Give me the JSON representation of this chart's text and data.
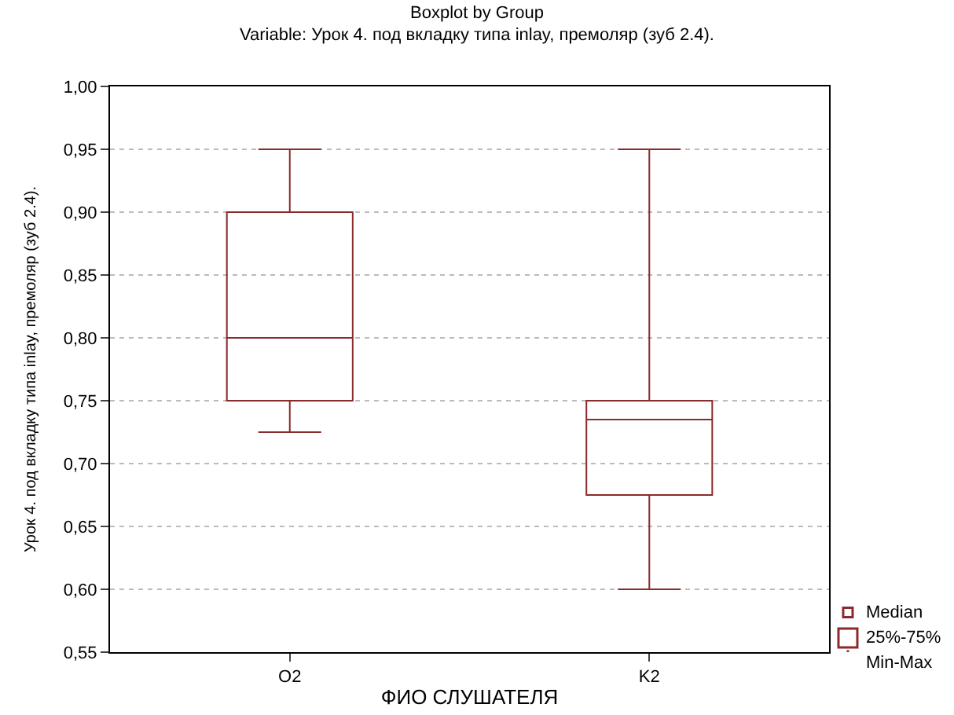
{
  "chart_data": {
    "type": "box",
    "title": "Boxplot by Group",
    "subtitle": "Variable: Урок 4. под вкладку типа inlay, премоляр (зуб 2.4).",
    "xlabel": "ФИО СЛУШАТЕЛЯ",
    "ylabel": "Урок 4. под вкладку типа inlay, премоляр (зуб 2.4).",
    "categories": [
      "O2",
      "K2"
    ],
    "series": [
      {
        "color": "#8b2a2a",
        "boxes": [
          {
            "low": 0.725,
            "q1": 0.75,
            "median": 0.8,
            "q3": 0.9,
            "high": 0.95
          },
          {
            "low": 0.6,
            "q1": 0.675,
            "median": 0.735,
            "q3": 0.75,
            "high": 0.95
          }
        ]
      }
    ],
    "ylim": [
      0.55,
      1.0
    ],
    "yticks": [
      {
        "value": 0.55,
        "label": "0,55"
      },
      {
        "value": 0.6,
        "label": "0,60"
      },
      {
        "value": 0.65,
        "label": "0,65"
      },
      {
        "value": 0.7,
        "label": "0,70"
      },
      {
        "value": 0.75,
        "label": "0,75"
      },
      {
        "value": 0.8,
        "label": "0,80"
      },
      {
        "value": 0.85,
        "label": "0,85"
      },
      {
        "value": 0.9,
        "label": "0,90"
      },
      {
        "value": 0.95,
        "label": "0,95"
      },
      {
        "value": 1.0,
        "label": "1,00"
      }
    ],
    "grid": "y",
    "annotations": [
      "Median",
      "25%-75%",
      "Min-Max"
    ]
  }
}
